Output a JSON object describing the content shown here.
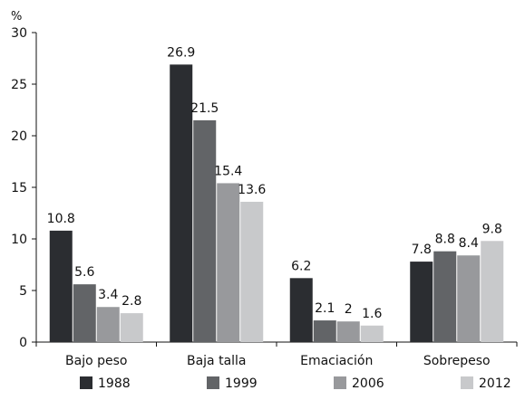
{
  "chart_data": {
    "type": "bar",
    "unit": "%",
    "ylim": [
      0,
      30
    ],
    "yticks": [
      "0",
      "5",
      "10",
      "15",
      "20",
      "25",
      "30"
    ],
    "categories": [
      "Bajo peso",
      "Baja talla",
      "Emaciación",
      "Sobrepeso"
    ],
    "series": [
      {
        "name": "1988",
        "color": "#2b2d31",
        "values": [
          10.8,
          26.9,
          6.2,
          7.8
        ],
        "labels": [
          "10.8",
          "26.9",
          "6.2",
          "7.8"
        ]
      },
      {
        "name": "1999",
        "color": "#626467",
        "values": [
          5.6,
          21.5,
          2.1,
          8.8
        ],
        "labels": [
          "5.6",
          "21.5",
          "2.1",
          "8.8"
        ]
      },
      {
        "name": "2006",
        "color": "#98999c",
        "values": [
          3.4,
          15.4,
          2.0,
          8.4
        ],
        "labels": [
          "3.4",
          "15.4",
          "2",
          "8.4"
        ]
      },
      {
        "name": "2012",
        "color": "#c8c9cb",
        "values": [
          2.8,
          13.6,
          1.6,
          9.8
        ],
        "labels": [
          "2.8",
          "13.6",
          "1.6",
          "9.8"
        ]
      }
    ],
    "grid": false,
    "legend": "bottom"
  }
}
